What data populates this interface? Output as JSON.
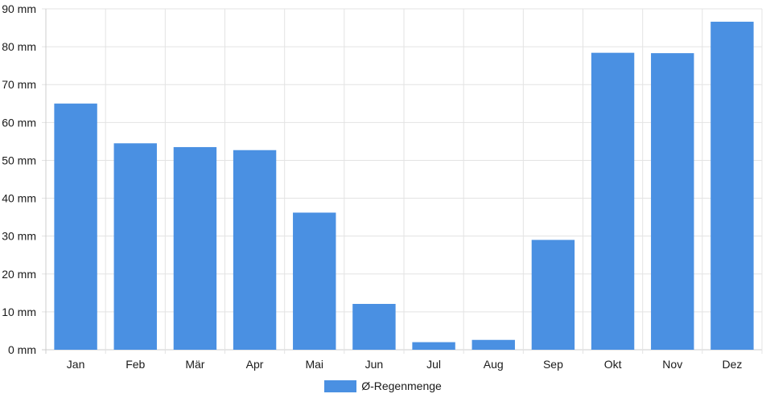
{
  "chart_data": {
    "type": "bar",
    "categories": [
      "Jan",
      "Feb",
      "Mär",
      "Apr",
      "Mai",
      "Jun",
      "Jul",
      "Aug",
      "Sep",
      "Okt",
      "Nov",
      "Dez"
    ],
    "series": [
      {
        "name": "Ø-Regenmenge",
        "values": [
          65,
          54.5,
          53.5,
          52.7,
          36.2,
          12.1,
          2,
          2.6,
          29,
          78.4,
          78.3,
          86.6
        ]
      }
    ],
    "ylim": [
      0,
      90
    ],
    "yticks": [
      0,
      10,
      20,
      30,
      40,
      50,
      60,
      70,
      80,
      90
    ],
    "ytick_suffix": " mm",
    "grid": true,
    "legend_position": "bottom",
    "colors": {
      "bar": "#4a90e2",
      "grid": "#e3e3e3",
      "axis": "#cccccc"
    }
  },
  "legend": {
    "label": "Ø-Regenmenge"
  }
}
